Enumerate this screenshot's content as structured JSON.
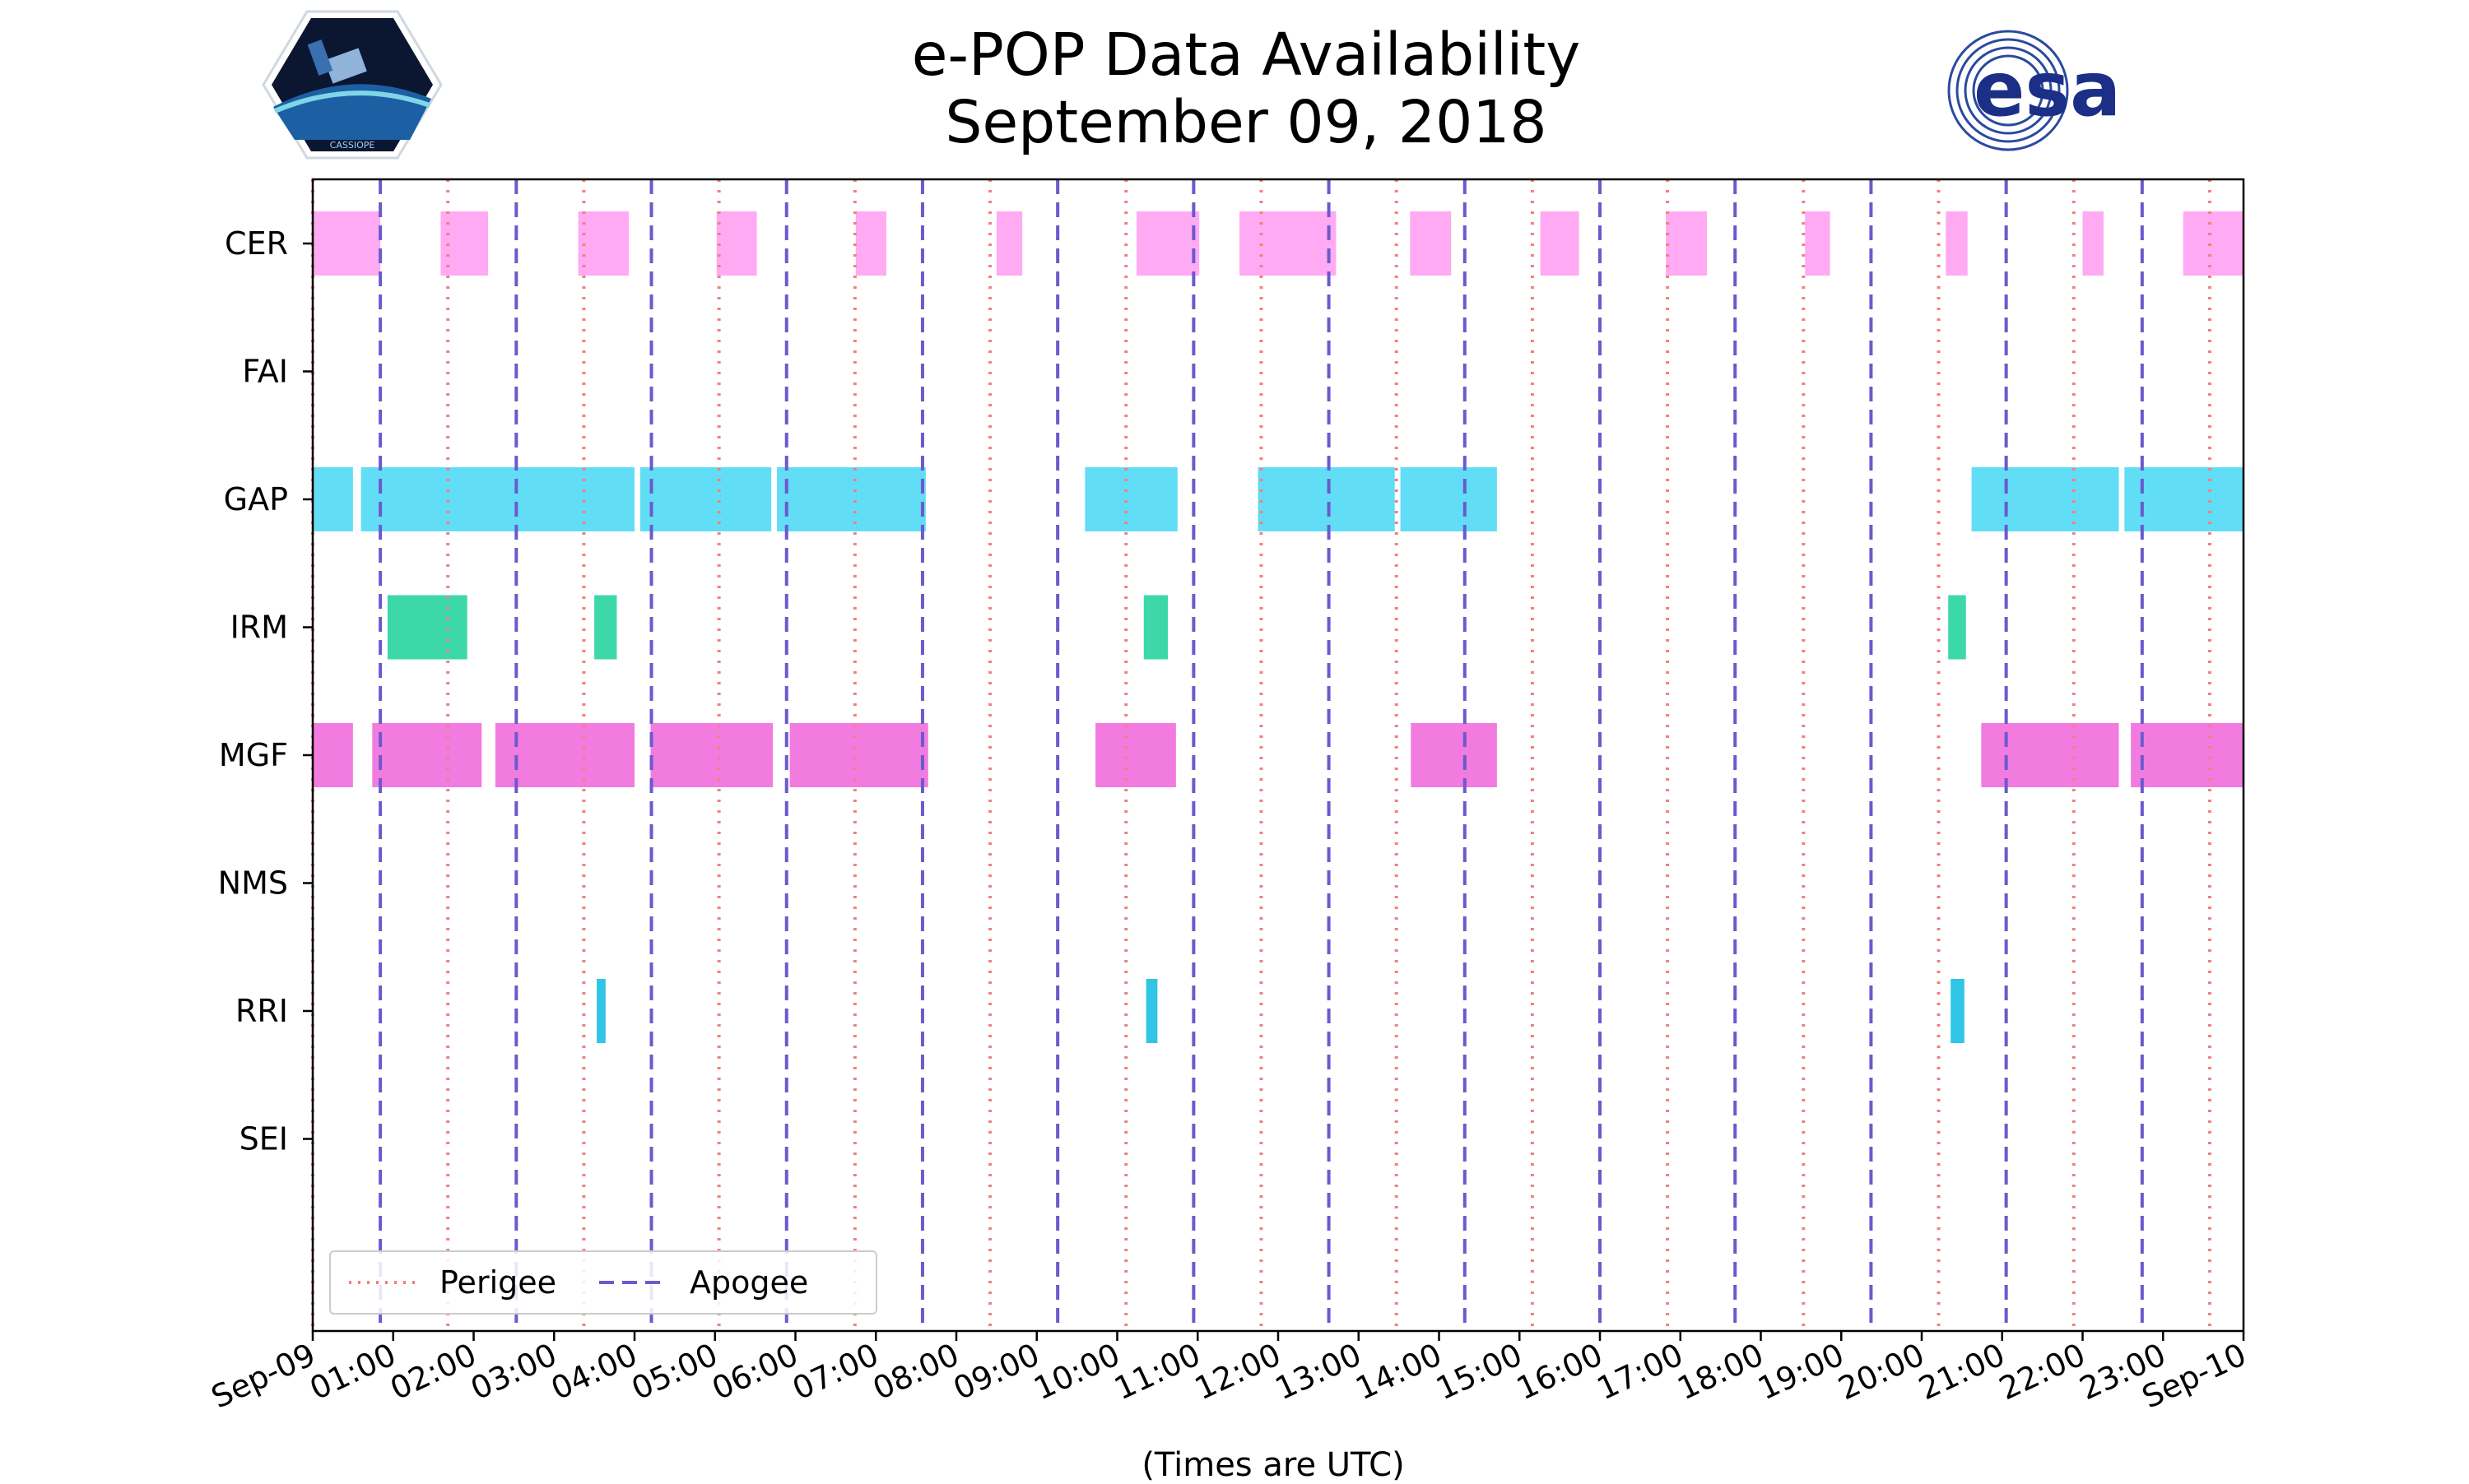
{
  "header": {
    "title_line1": "e-POP Data Availability",
    "title_line2": "September 09, 2018",
    "esa_logo_text": "esa",
    "cassiope_badge_text": "CASSIOPE"
  },
  "chart_data": {
    "type": "timeline",
    "title": "e-POP Data Availability September 09, 2018",
    "xlabel": "(Times are UTC)",
    "ylabel": "",
    "x_unit": "hours UTC",
    "xlim": [
      0,
      24
    ],
    "categories": [
      "CER",
      "FAI",
      "GAP",
      "IRM",
      "MGF",
      "NMS",
      "RRI",
      "SEI"
    ],
    "colors": {
      "CER": "#ffaaf3",
      "GAP": "#62ddf6",
      "IRM": "#3dd8a8",
      "MGF": "#f27be0",
      "RRI": "#30c5e4",
      "perigee": "#f08080",
      "apogee": "#6a5acd"
    },
    "x_ticks": [
      {
        "hour": 0,
        "label": "Sep-09"
      },
      {
        "hour": 1,
        "label": "01:00"
      },
      {
        "hour": 2,
        "label": "02:00"
      },
      {
        "hour": 3,
        "label": "03:00"
      },
      {
        "hour": 4,
        "label": "04:00"
      },
      {
        "hour": 5,
        "label": "05:00"
      },
      {
        "hour": 6,
        "label": "06:00"
      },
      {
        "hour": 7,
        "label": "07:00"
      },
      {
        "hour": 8,
        "label": "08:00"
      },
      {
        "hour": 9,
        "label": "09:00"
      },
      {
        "hour": 10,
        "label": "10:00"
      },
      {
        "hour": 11,
        "label": "11:00"
      },
      {
        "hour": 12,
        "label": "12:00"
      },
      {
        "hour": 13,
        "label": "13:00"
      },
      {
        "hour": 14,
        "label": "14:00"
      },
      {
        "hour": 15,
        "label": "15:00"
      },
      {
        "hour": 16,
        "label": "16:00"
      },
      {
        "hour": 17,
        "label": "17:00"
      },
      {
        "hour": 18,
        "label": "18:00"
      },
      {
        "hour": 19,
        "label": "19:00"
      },
      {
        "hour": 20,
        "label": "20:00"
      },
      {
        "hour": 21,
        "label": "21:00"
      },
      {
        "hour": 22,
        "label": "22:00"
      },
      {
        "hour": 23,
        "label": "23:00"
      },
      {
        "hour": 24,
        "label": "Sep-10"
      }
    ],
    "series": [
      {
        "name": "CER",
        "intervals": [
          [
            0.0,
            0.84
          ],
          [
            1.59,
            2.18
          ],
          [
            3.3,
            3.93
          ],
          [
            5.02,
            5.52
          ],
          [
            6.75,
            7.13
          ],
          [
            8.5,
            8.82
          ],
          [
            10.24,
            11.02
          ],
          [
            11.52,
            12.72
          ],
          [
            13.64,
            14.15
          ],
          [
            15.26,
            15.74
          ],
          [
            16.82,
            17.33
          ],
          [
            18.55,
            18.86
          ],
          [
            20.3,
            20.57
          ],
          [
            22.0,
            22.26
          ],
          [
            23.25,
            24.0
          ]
        ]
      },
      {
        "name": "FAI",
        "intervals": []
      },
      {
        "name": "GAP",
        "intervals": [
          [
            0.0,
            0.5
          ],
          [
            0.6,
            4.0
          ],
          [
            4.07,
            5.7
          ],
          [
            5.77,
            7.62
          ],
          [
            9.6,
            10.75
          ],
          [
            11.75,
            13.45
          ],
          [
            13.52,
            14.72
          ],
          [
            20.62,
            22.45
          ],
          [
            22.52,
            24.0
          ]
        ]
      },
      {
        "name": "IRM",
        "intervals": [
          [
            0.93,
            1.92
          ],
          [
            3.5,
            3.78
          ],
          [
            10.33,
            10.63
          ],
          [
            20.33,
            20.55
          ]
        ]
      },
      {
        "name": "MGF",
        "intervals": [
          [
            0.0,
            0.5
          ],
          [
            0.74,
            2.1
          ],
          [
            2.27,
            4.0
          ],
          [
            4.2,
            5.72
          ],
          [
            5.93,
            7.65
          ],
          [
            9.73,
            10.73
          ],
          [
            13.65,
            14.72
          ],
          [
            20.74,
            22.45
          ],
          [
            22.6,
            24.0
          ]
        ]
      },
      {
        "name": "NMS",
        "intervals": []
      },
      {
        "name": "RRI",
        "intervals": [
          [
            3.53,
            3.64
          ],
          [
            10.36,
            10.5
          ],
          [
            20.36,
            20.53
          ]
        ]
      },
      {
        "name": "SEI",
        "intervals": []
      }
    ],
    "perigee_hours": [
      0.0,
      1.68,
      3.37,
      5.05,
      6.74,
      8.42,
      10.11,
      11.79,
      13.47,
      15.16,
      16.84,
      18.53,
      20.21,
      21.89,
      23.58
    ],
    "apogee_hours": [
      0.84,
      2.53,
      4.21,
      5.89,
      7.58,
      9.26,
      10.95,
      12.63,
      14.32,
      16.0,
      17.68,
      19.37,
      21.05,
      22.74
    ],
    "legend": [
      {
        "label": "Perigee",
        "style": "dotted",
        "color": "#f08080"
      },
      {
        "label": "Apogee",
        "style": "dashed",
        "color": "#6a5acd"
      }
    ],
    "legend_position": "lower-left"
  }
}
